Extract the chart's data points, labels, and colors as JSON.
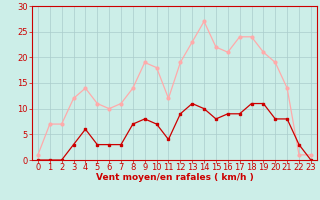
{
  "hours": [
    0,
    1,
    2,
    3,
    4,
    5,
    6,
    7,
    8,
    9,
    10,
    11,
    12,
    13,
    14,
    15,
    16,
    17,
    18,
    19,
    20,
    21,
    22,
    23
  ],
  "wind_avg": [
    0,
    0,
    0,
    3,
    6,
    3,
    3,
    3,
    7,
    8,
    7,
    4,
    9,
    11,
    10,
    8,
    9,
    9,
    11,
    11,
    8,
    8,
    3,
    0
  ],
  "wind_gust": [
    1,
    7,
    7,
    12,
    14,
    11,
    10,
    11,
    14,
    19,
    18,
    12,
    19,
    23,
    27,
    22,
    21,
    24,
    24,
    21,
    19,
    14,
    1,
    1
  ],
  "color_avg": "#cc0000",
  "color_gust": "#ffaaaa",
  "bg_color": "#cceee8",
  "grid_color": "#aacccc",
  "axis_color": "#cc0000",
  "xlabel": "Vent moyen/en rafales ( km/h )",
  "ylim": [
    0,
    30
  ],
  "yticks": [
    0,
    5,
    10,
    15,
    20,
    25,
    30
  ],
  "label_fontsize": 6.5,
  "tick_fontsize": 6.0
}
